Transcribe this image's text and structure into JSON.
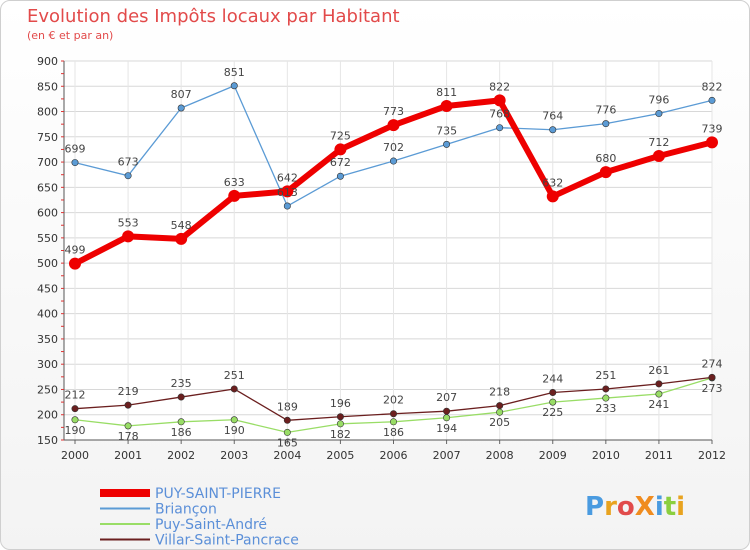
{
  "chart_data": {
    "type": "line",
    "title": "Evolution des Impôts locaux par Habitant",
    "subtitle": "(en € et par an)",
    "xlabel": "",
    "ylabel": "",
    "ylim": [
      150,
      900
    ],
    "yticks": [
      150,
      200,
      250,
      300,
      350,
      400,
      450,
      500,
      550,
      600,
      650,
      700,
      750,
      800,
      850,
      900
    ],
    "x": [
      2000,
      2001,
      2002,
      2003,
      2004,
      2005,
      2006,
      2007,
      2008,
      2009,
      2010,
      2011,
      2012
    ],
    "grid": true,
    "legend_position": "bottom-left",
    "series": [
      {
        "name": "PUY-SAINT-PIERRE",
        "color": "#ee0000",
        "values": [
          499,
          553,
          548,
          633,
          642,
          725,
          773,
          811,
          822,
          632,
          680,
          712,
          739
        ]
      },
      {
        "name": "Briançon",
        "color": "#5b9bd5",
        "values": [
          699,
          673,
          807,
          851,
          613,
          672,
          702,
          735,
          768,
          764,
          776,
          796,
          822
        ]
      },
      {
        "name": "Puy-Saint-André",
        "color": "#99dd66",
        "values": [
          190,
          178,
          186,
          190,
          165,
          182,
          186,
          194,
          205,
          225,
          233,
          241,
          273
        ]
      },
      {
        "name": "Villar-Saint-Pancrace",
        "color": "#6b1f1f",
        "values": [
          212,
          219,
          235,
          251,
          189,
          196,
          202,
          207,
          218,
          244,
          251,
          261,
          274
        ]
      }
    ]
  },
  "logo": {
    "text": "ProXiti"
  }
}
